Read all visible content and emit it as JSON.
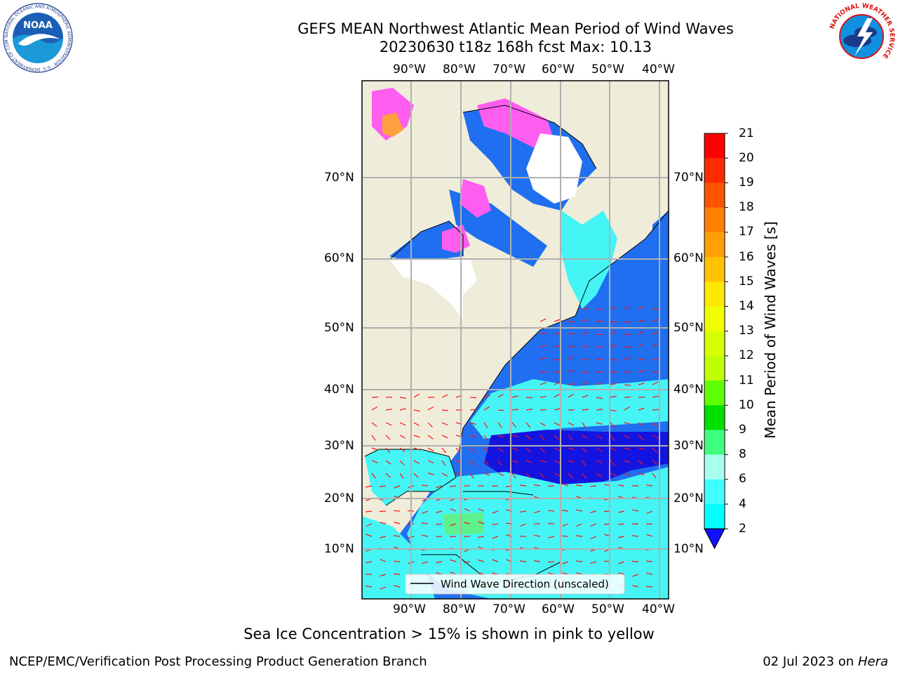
{
  "title_line1": "GEFS MEAN Northwest Atlantic Mean Period of Wind Waves",
  "title_line2": "20230630 t18z 168h fcst   Max: 10.13",
  "max_value": 10.13,
  "lon_labels": [
    "90°W",
    "80°W",
    "70°W",
    "60°W",
    "50°W",
    "40°W"
  ],
  "lat_labels": [
    "70°N",
    "60°N",
    "50°N",
    "40°N",
    "30°N",
    "20°N",
    "10°N"
  ],
  "legend_text": "Wind Wave Direction (unscaled)",
  "colorbar": {
    "label": "Mean Period of Wind Waves [s]",
    "ticks": [
      "21",
      "20",
      "19",
      "18",
      "17",
      "16",
      "15",
      "14",
      "13",
      "12",
      "11",
      "10",
      "9",
      "8",
      "6",
      "4",
      "2"
    ],
    "colors": [
      "#ff0000",
      "#ff2a00",
      "#ff5500",
      "#ff8000",
      "#ffa000",
      "#ffc000",
      "#ffe800",
      "#f0ff00",
      "#d8ff00",
      "#c0ff00",
      "#60ff00",
      "#00e000",
      "#40ff80",
      "#a8fff0",
      "#40ffff",
      "#00ffff",
      "#0080ff"
    ],
    "under_color": "#1010ff",
    "extend": "min"
  },
  "colors": {
    "land": "#efedd9",
    "ocean_low": "#1f6ff0",
    "ocean_deep": "#1414e0",
    "ocean_mid": "#45f5f5",
    "ice_pink": "#ff5cf0",
    "ice_orange": "#ffa040",
    "arrows": "#ff1010",
    "grid": "#b0b0b0"
  },
  "caption": "Sea Ice Concentration > 15% is shown in pink to yellow",
  "footer_left": "NCEP/EMC/Verification Post Processing Product Generation Branch",
  "footer_right_prefix": "02 Jul 2023 on ",
  "footer_right_machine": "Hera",
  "logos": {
    "left_text": "NOAA",
    "left_ring": "NATIONAL OCEANIC AND ATMOSPHERIC ADMINISTRATION · U.S. DEPARTMENT OF COMMERCE",
    "right_ring": "NATIONAL WEATHER SERVICE"
  }
}
